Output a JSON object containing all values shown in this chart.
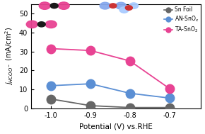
{
  "x": [
    -0.7,
    -0.8,
    -0.9,
    -1.0
  ],
  "sn_foil": [
    0.5,
    0.5,
    1.5,
    5.0
  ],
  "an_snox": [
    5.5,
    8.0,
    13.0,
    12.0
  ],
  "ta_sno2": [
    10.5,
    25.0,
    30.5,
    31.5
  ],
  "sn_foil_color": "#666666",
  "an_snox_color": "#5b8fd4",
  "ta_sno2_color": "#e84393",
  "xlabel": "Potential (V) vs.RHE",
  "ylabel": "$j_{HCOO^-}$ (mA/cm$^2$)",
  "xlim": [
    -1.05,
    -0.62
  ],
  "ylim": [
    0,
    55
  ],
  "yticks": [
    0,
    10,
    20,
    30,
    40,
    50
  ],
  "xticks": [
    -0.7,
    -0.8,
    -0.9,
    -1.0
  ],
  "legend_labels": [
    "Sn Foil",
    "AN-SnO$_x$",
    "TA-SnO$_2$"
  ],
  "marker_size": 9,
  "linewidth": 1.3,
  "bg_color": "#ffffff"
}
